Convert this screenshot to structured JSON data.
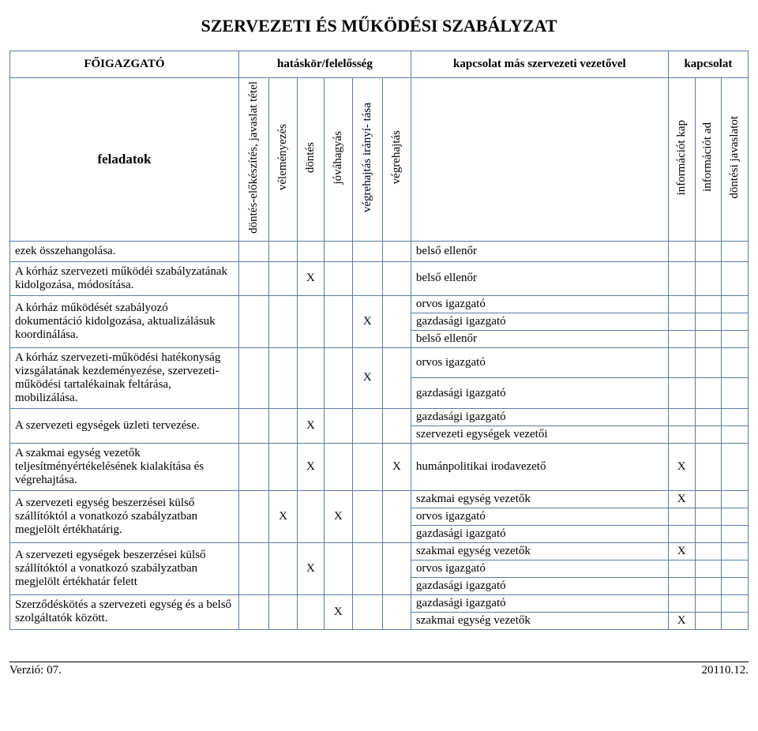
{
  "title": "SZERVEZETI ÉS MŰKÖDÉSI SZABÁLYZAT",
  "head": {
    "top": [
      "FŐIGAZGATÓ",
      "hatáskör/felelősség",
      "kapcsolat más szervezeti vezetővel",
      "kapcsolat"
    ],
    "feladatok": "feladatok",
    "vcols": [
      "döntés-előkészítés,\njavaslat tétel",
      "véleményezés",
      "döntés",
      "jóváhagyás",
      "végrehajtás irányí-\ntása",
      "végrehajtás"
    ],
    "icols": [
      "információt kap",
      "információt ad",
      "döntési javaslatot"
    ]
  },
  "rows": [
    {
      "task": "ezek összehangolása.",
      "marks": [
        "",
        "",
        "",
        "",
        "",
        ""
      ],
      "contacts": [
        {
          "t": "belső ellenőr",
          "i": [
            "",
            "",
            ""
          ]
        }
      ]
    },
    {
      "task": "A kórház szervezeti működéi szabályzatának kidolgozása, módosítása.",
      "marks": [
        "",
        "",
        "X",
        "",
        "",
        ""
      ],
      "contacts": [
        {
          "t": "belső ellenőr",
          "i": [
            "",
            "",
            ""
          ]
        }
      ]
    },
    {
      "task": "A kórház működését szabályozó dokumentáció kidolgozása, aktualizálásuk koordinálása.",
      "marks": [
        "",
        "",
        "",
        "",
        "X",
        ""
      ],
      "contacts": [
        {
          "t": "orvos igazgató",
          "i": [
            "",
            "",
            ""
          ]
        },
        {
          "t": "gazdasági igazgató",
          "i": [
            "",
            "",
            ""
          ]
        },
        {
          "t": "belső ellenőr",
          "i": [
            "",
            "",
            ""
          ]
        }
      ]
    },
    {
      "task": "A kórház szervezeti-működési hatékonyság vizsgálatának kezdeményezése, szervezeti-működési tartalékainak feltárása, mobilizálása.",
      "marks": [
        "",
        "",
        "",
        "",
        "X",
        ""
      ],
      "contacts": [
        {
          "t": "orvos igazgató",
          "i": [
            "",
            "",
            ""
          ]
        },
        {
          "t": "gazdasági igazgató",
          "i": [
            "",
            "",
            ""
          ]
        }
      ]
    },
    {
      "task": "A szervezeti egységek üzleti tervezése.",
      "marks": [
        "",
        "",
        "X",
        "",
        "",
        ""
      ],
      "contacts": [
        {
          "t": "gazdasági igazgató",
          "i": [
            "",
            "",
            ""
          ]
        },
        {
          "t": "szervezeti egységek vezetői",
          "i": [
            "",
            "",
            ""
          ]
        }
      ]
    },
    {
      "task": "A szakmai egység vezetők teljesítményértékelésének kialakítása és végrehajtása.",
      "marks": [
        "",
        "",
        "X",
        "",
        "",
        "X"
      ],
      "contacts": [
        {
          "t": "humánpolitikai irodavezető",
          "i": [
            "X",
            "",
            ""
          ]
        }
      ]
    },
    {
      "task": "A szervezeti egység beszerzései külső szállítóktól a vonatkozó szabályzatban megjelölt értékhatárig.",
      "marks": [
        "",
        "X",
        "",
        "X",
        "",
        ""
      ],
      "contacts": [
        {
          "t": "szakmai egység vezetők",
          "i": [
            "X",
            "",
            ""
          ]
        },
        {
          "t": "orvos igazgató",
          "i": [
            "",
            "",
            ""
          ]
        },
        {
          "t": "gazdasági igazgató",
          "i": [
            "",
            "",
            ""
          ]
        }
      ]
    },
    {
      "task": "A szervezeti egységek beszerzései külső szállítóktól a vonatkozó szabályzatban megjelölt értékhatár felett",
      "marks": [
        "",
        "",
        "X",
        "",
        "",
        ""
      ],
      "contacts": [
        {
          "t": "szakmai egység vezetők",
          "i": [
            "X",
            "",
            ""
          ]
        },
        {
          "t": "orvos igazgató",
          "i": [
            "",
            "",
            ""
          ]
        },
        {
          "t": "gazdasági igazgató",
          "i": [
            "",
            "",
            ""
          ]
        }
      ]
    },
    {
      "task": "Szerződéskötés a szervezeti egység és a belső szolgáltatók között.",
      "marks": [
        "",
        "",
        "",
        "X",
        "",
        ""
      ],
      "contacts": [
        {
          "t": "gazdasági igazgató",
          "i": [
            "",
            "",
            ""
          ]
        },
        {
          "t": "szakmai egység vezetők",
          "i": [
            "X",
            "",
            ""
          ]
        }
      ]
    }
  ],
  "footer": {
    "version": "Verzió: 07.",
    "date": "20110.12."
  }
}
